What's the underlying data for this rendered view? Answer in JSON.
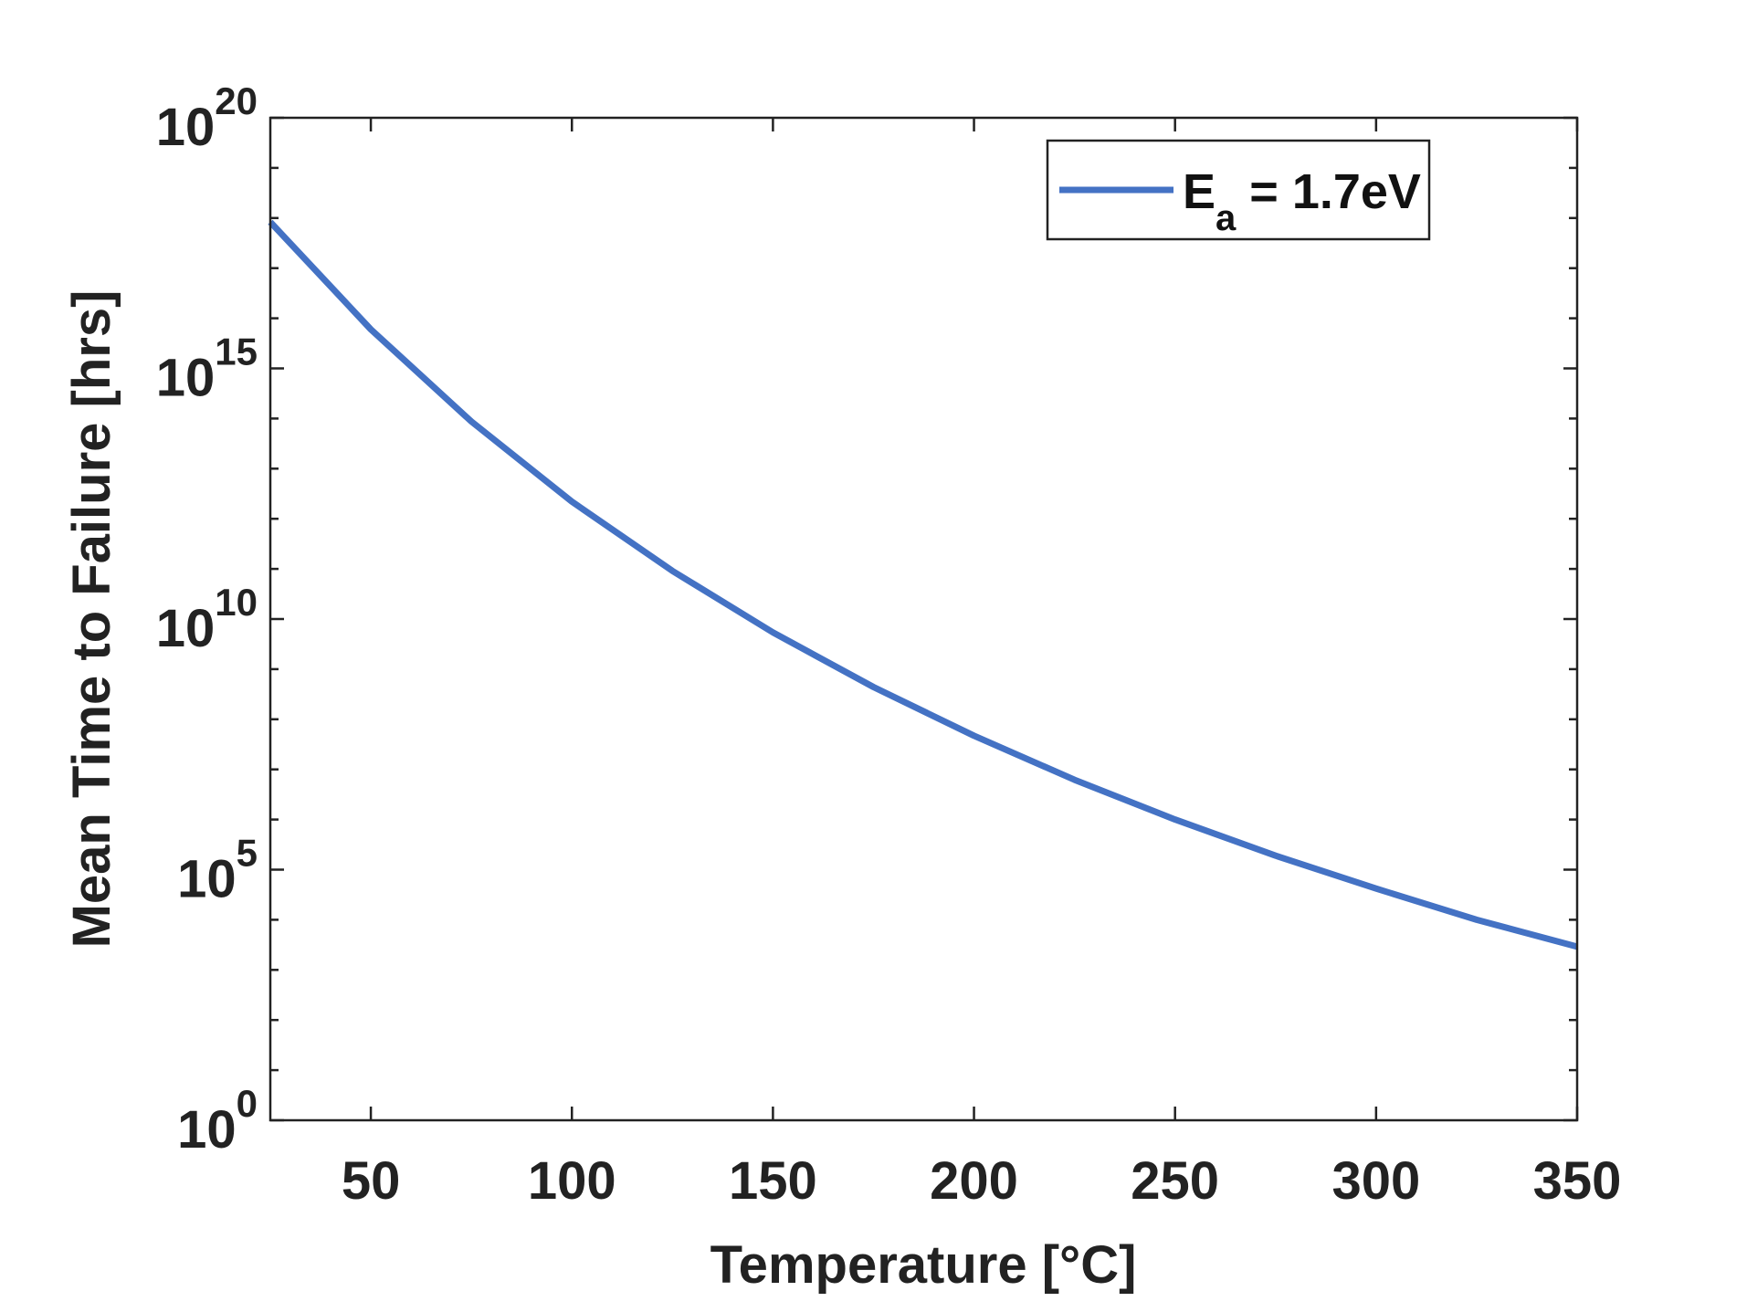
{
  "chart_data": {
    "type": "line",
    "title": "",
    "xlabel": "Temperature [°C]",
    "ylabel": "Mean Time to Failure [hrs]",
    "xlim": [
      25,
      350
    ],
    "ylim": [
      1,
      1e+20
    ],
    "yscale": "log",
    "grid": false,
    "legend_position": "top-right",
    "x_ticks": [
      50,
      100,
      150,
      200,
      250,
      300,
      350
    ],
    "x_tick_labels": [
      "50",
      "100",
      "150",
      "200",
      "250",
      "300",
      "350"
    ],
    "y_ticks": [
      {
        "value": 1,
        "base": "10",
        "exp": "0"
      },
      {
        "value": 100000.0,
        "base": "10",
        "exp": "5"
      },
      {
        "value": 10000000000.0,
        "base": "10",
        "exp": "10"
      },
      {
        "value": 1000000000000000.0,
        "base": "10",
        "exp": "15"
      },
      {
        "value": 1e+20,
        "base": "10",
        "exp": "20"
      }
    ],
    "series": [
      {
        "name": "E_a = 1.7eV",
        "legend_main": "E",
        "legend_sub": "a",
        "legend_rest": " = 1.7eV",
        "color": "#4472C4",
        "x": [
          25,
          50,
          75,
          100,
          125,
          150,
          175,
          200,
          225,
          250,
          275,
          300,
          325,
          350
        ],
        "y": [
          8.3e+17,
          6000000000000000.0,
          87000000000000.0,
          2200000000000.0,
          91000000000.0,
          5400000000.0,
          440000000.0,
          47000000.0,
          6200000.0,
          1000000.0,
          190000.0,
          42000.0,
          10000.0,
          2900.0
        ]
      }
    ]
  }
}
